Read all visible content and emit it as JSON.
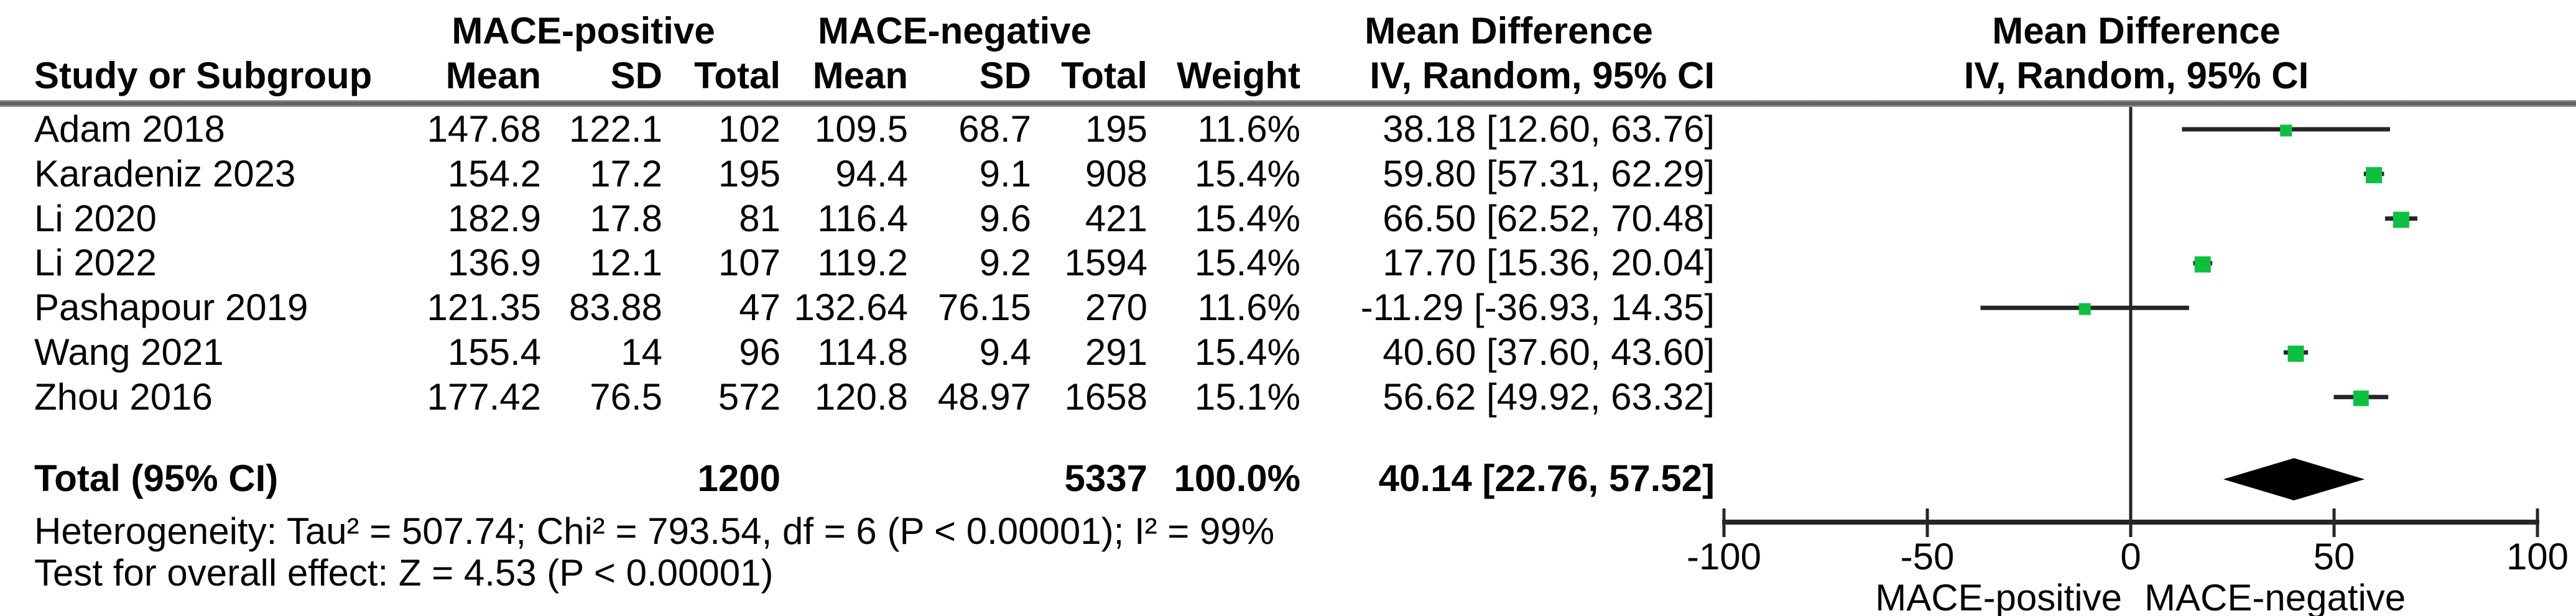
{
  "table": {
    "group1_label": "MACE-positive",
    "group2_label": "MACE-negative",
    "effect_label": "Mean Difference",
    "method_label": "IV, Random, 95% CI",
    "columns": {
      "study": "Study or Subgroup",
      "mean": "Mean",
      "sd": "SD",
      "total": "Total",
      "weight": "Weight"
    },
    "studies": [
      {
        "name": "Adam 2018",
        "mean1": "147.68",
        "sd1": "122.1",
        "total1": "102",
        "mean2": "109.5",
        "sd2": "68.7",
        "total2": "195",
        "weight": "11.6%",
        "ci_text": "38.18 [12.60, 63.76]"
      },
      {
        "name": "Karadeniz 2023",
        "mean1": "154.2",
        "sd1": "17.2",
        "total1": "195",
        "mean2": "94.4",
        "sd2": "9.1",
        "total2": "908",
        "weight": "15.4%",
        "ci_text": "59.80 [57.31, 62.29]"
      },
      {
        "name": "Li 2020",
        "mean1": "182.9",
        "sd1": "17.8",
        "total1": "81",
        "mean2": "116.4",
        "sd2": "9.6",
        "total2": "421",
        "weight": "15.4%",
        "ci_text": "66.50 [62.52, 70.48]"
      },
      {
        "name": "Li 2022",
        "mean1": "136.9",
        "sd1": "12.1",
        "total1": "107",
        "mean2": "119.2",
        "sd2": "9.2",
        "total2": "1594",
        "weight": "15.4%",
        "ci_text": "17.70 [15.36, 20.04]"
      },
      {
        "name": "Pashapour 2019",
        "mean1": "121.35",
        "sd1": "83.88",
        "total1": "47",
        "mean2": "132.64",
        "sd2": "76.15",
        "total2": "270",
        "weight": "11.6%",
        "ci_text": "-11.29 [-36.93, 14.35]"
      },
      {
        "name": "Wang 2021",
        "mean1": "155.4",
        "sd1": "14",
        "total1": "96",
        "mean2": "114.8",
        "sd2": "9.4",
        "total2": "291",
        "weight": "15.4%",
        "ci_text": "40.60 [37.60, 43.60]"
      },
      {
        "name": "Zhou 2016",
        "mean1": "177.42",
        "sd1": "76.5",
        "total1": "572",
        "mean2": "120.8",
        "sd2": "48.97",
        "total2": "1658",
        "weight": "15.1%",
        "ci_text": "56.62 [49.92, 63.32]"
      }
    ],
    "total_row": {
      "label": "Total (95% CI)",
      "total1": "1200",
      "total2": "5337",
      "weight": "100.0%",
      "ci_text": "40.14 [22.76, 57.52]"
    },
    "heterogeneity": "Heterogeneity: Tau² = 507.74; Chi² = 793.54, df = 6 (P < 0.00001); I² = 99%",
    "overall_effect": "Test for overall effect: Z = 4.53 (P < 0.00001)"
  },
  "plot": {
    "title": "Mean Difference",
    "subtitle": "IV, Random, 95% CI"
  },
  "chart_data": {
    "type": "scatter",
    "subtype": "forest-plot",
    "title": "Mean Difference",
    "method": "IV, Random, 95% CI",
    "xlim": [
      -100,
      100
    ],
    "axis": {
      "ticks": [
        -100,
        -50,
        0,
        50,
        100
      ],
      "tick_labels": [
        "-100",
        "-50",
        "0",
        "50",
        "100"
      ],
      "xlabel_left": "MACE-positive",
      "xlabel_right": "MACE-negative"
    },
    "series": [
      {
        "name": "Adam 2018",
        "estimate": 38.18,
        "ci_low": 12.6,
        "ci_high": 63.76,
        "weight_pct": 11.6
      },
      {
        "name": "Karadeniz 2023",
        "estimate": 59.8,
        "ci_low": 57.31,
        "ci_high": 62.29,
        "weight_pct": 15.4
      },
      {
        "name": "Li 2020",
        "estimate": 66.5,
        "ci_low": 62.52,
        "ci_high": 70.48,
        "weight_pct": 15.4
      },
      {
        "name": "Li 2022",
        "estimate": 17.7,
        "ci_low": 15.36,
        "ci_high": 20.04,
        "weight_pct": 15.4
      },
      {
        "name": "Pashapour 2019",
        "estimate": -11.29,
        "ci_low": -36.93,
        "ci_high": 14.35,
        "weight_pct": 11.6
      },
      {
        "name": "Wang 2021",
        "estimate": 40.6,
        "ci_low": 37.6,
        "ci_high": 43.6,
        "weight_pct": 15.4
      },
      {
        "name": "Zhou 2016",
        "estimate": 56.62,
        "ci_low": 49.92,
        "ci_high": 63.32,
        "weight_pct": 15.1
      }
    ],
    "total": {
      "name": "Total (95% CI)",
      "estimate": 40.14,
      "ci_low": 22.76,
      "ci_high": 57.52,
      "weight_pct": 100.0
    },
    "marker_color": "#0cc13f",
    "line_color": "#262626",
    "legend": "none",
    "grid": false
  }
}
